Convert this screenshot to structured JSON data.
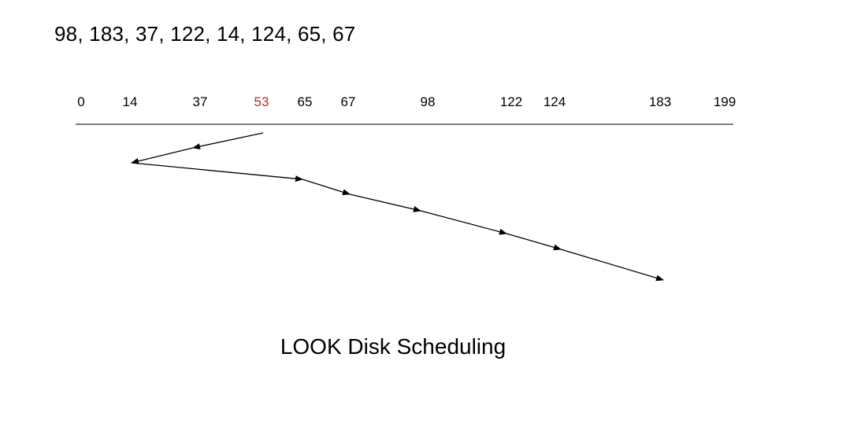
{
  "request_queue": "98, 183, 37, 122, 14, 124, 65, 67",
  "caption": "LOOK Disk Scheduling",
  "colors": {
    "head": "#c0282d",
    "text": "#000000",
    "line": "#000000"
  },
  "axis": {
    "ticks": [
      {
        "value": 0,
        "label": "0"
      },
      {
        "value": 14,
        "label": "14"
      },
      {
        "value": 37,
        "label": "37"
      },
      {
        "value": 53,
        "label": "53",
        "is_head": true
      },
      {
        "value": 65,
        "label": "65"
      },
      {
        "value": 67,
        "label": "67"
      },
      {
        "value": 98,
        "label": "98"
      },
      {
        "value": 122,
        "label": "122"
      },
      {
        "value": 124,
        "label": "124"
      },
      {
        "value": 183,
        "label": "183"
      },
      {
        "value": 199,
        "label": "199"
      }
    ]
  },
  "head_start": 53,
  "service_order": [
    37,
    14,
    65,
    67,
    98,
    122,
    124,
    183
  ]
}
